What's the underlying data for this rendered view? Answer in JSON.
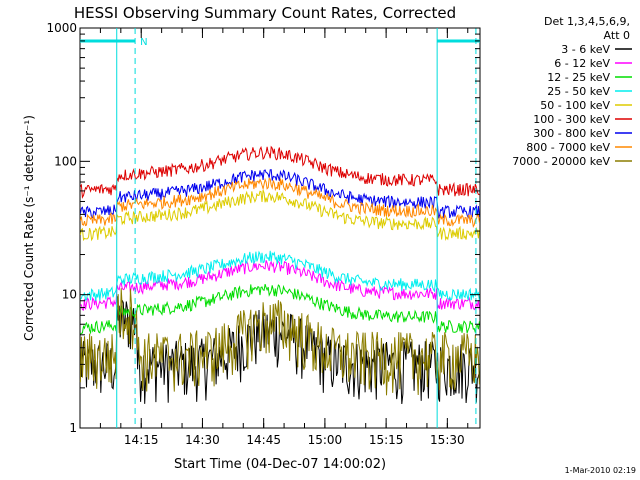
{
  "chart_data": {
    "type": "line",
    "title": "HESSI Observing Summary Count Rates, Corrected",
    "xlabel": "Start Time (04-Dec-07 14:00:02)",
    "ylabel": "Corrected Count Rate (s⁻¹ detector⁻¹)",
    "y_scale": "log",
    "ylim": [
      1,
      1000
    ],
    "xlim_minutes": [
      0,
      98
    ],
    "x_ticks": [
      "14:15",
      "14:30",
      "14:45",
      "15:00",
      "15:15",
      "15:30"
    ],
    "y_ticks": [
      "1",
      "10",
      "100",
      "1000"
    ],
    "legend_header": [
      "Det 1,3,4,5,6,9,",
      "Att 0"
    ],
    "legend_position": "right",
    "night_marker": "N",
    "night_intervals_minutes": [
      [
        0,
        13.5
      ],
      [
        87.5,
        98
      ]
    ],
    "vertical_lines_minutes": [
      9,
      13.5,
      87.5,
      97
    ],
    "series": [
      {
        "name": "3 - 6 keV",
        "color": "#000000",
        "shape": "low_bg",
        "level": 3
      },
      {
        "name": "6 - 12 keV",
        "color": "#ff00ff",
        "shape": "flare_hump",
        "level": 12
      },
      {
        "name": "12 - 25 keV",
        "color": "#00dd00",
        "shape": "flare_hump",
        "level": 8
      },
      {
        "name": "25 - 50 keV",
        "color": "#00eeee",
        "shape": "flare_hump",
        "level": 14
      },
      {
        "name": "50 - 100 keV",
        "color": "#ddcc00",
        "shape": "flare_hump",
        "level": 40
      },
      {
        "name": "100 - 300 keV",
        "color": "#dd0000",
        "shape": "flare_hump",
        "level": 85
      },
      {
        "name": "300 - 800 keV",
        "color": "#0000ee",
        "shape": "flare_hump",
        "level": 58
      },
      {
        "name": "800 - 7000 keV",
        "color": "#ff8800",
        "shape": "flare_hump",
        "level": 50
      },
      {
        "name": "7000 - 20000 keV",
        "color": "#8b7d00",
        "shape": "low_bg",
        "level": 3.5
      }
    ]
  },
  "timestamp": "1-Mar-2010 02:19"
}
